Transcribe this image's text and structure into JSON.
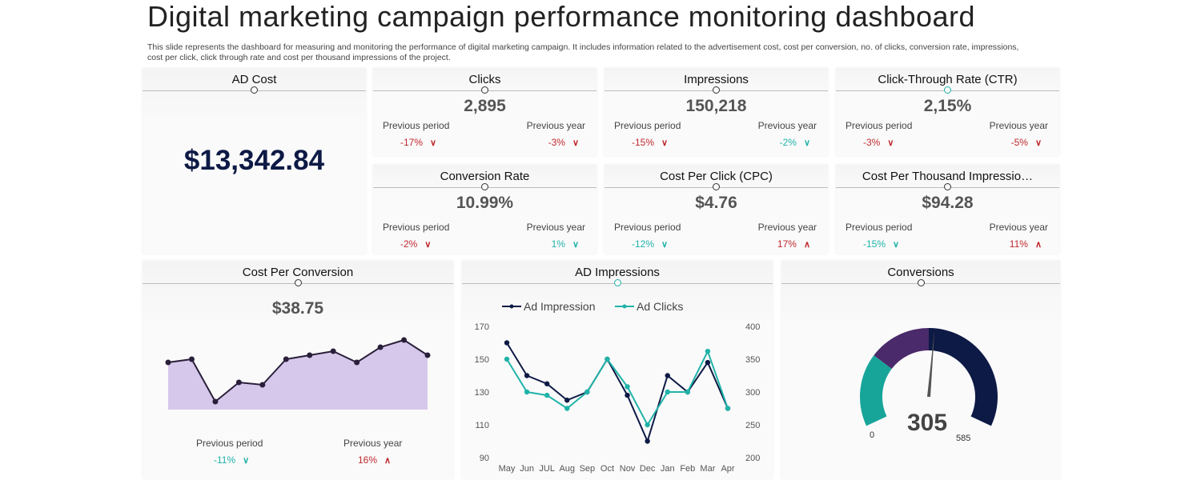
{
  "title": "Digital marketing campaign performance monitoring dashboard",
  "description": "This slide represents the dashboard for measuring and monitoring the performance of digital marketing campaign. It includes information related to the advertisement cost, cost per conversion, no. of clicks, conversion rate, impressions, cost per click, click through rate and cost per thousand impressions of the project.",
  "colors": {
    "down": "#c0282e",
    "up_good": "#1fb3a8",
    "navy": "#0d1a45",
    "purple": "#4a2a6a",
    "teal": "#17a59a",
    "area": "#d6c8ea"
  },
  "ad_cost": {
    "title": "AD Cost",
    "value": "$13,342.84"
  },
  "kpis": [
    {
      "title": "Clicks",
      "value": "2,895",
      "pp_label": "Previous period",
      "pp": "-17%",
      "pp_dir": "down",
      "pp_color": "red",
      "py_label": "Previous year",
      "py": "-3%",
      "py_dir": "down",
      "py_color": "red"
    },
    {
      "title": "Impressions",
      "value": "150,218",
      "pp_label": "Previous period",
      "pp": "-15%",
      "pp_dir": "down",
      "pp_color": "red",
      "py_label": "Previous year",
      "py": "-2%",
      "py_dir": "down",
      "py_color": "teal"
    },
    {
      "title": "Click-Through Rate (CTR)",
      "value": "2,15%",
      "pp_label": "Previous period",
      "pp": "-3%",
      "pp_dir": "down",
      "pp_color": "red",
      "py_label": "Previous year",
      "py": "-5%",
      "py_dir": "down",
      "py_color": "red"
    },
    {
      "title": "Conversion Rate",
      "value": "10.99%",
      "pp_label": "Previous period",
      "pp": "-2%",
      "pp_dir": "down",
      "pp_color": "red",
      "py_label": "Previous year",
      "py": "1%",
      "py_dir": "down",
      "py_color": "teal"
    },
    {
      "title": "Cost Per Click (CPC)",
      "value": "$4.76",
      "pp_label": "Previous period",
      "pp": "-12%",
      "pp_dir": "down",
      "pp_color": "teal",
      "py_label": "Previous year",
      "py": "17%",
      "py_dir": "up",
      "py_color": "red"
    },
    {
      "title": "Cost Per Thousand Impressio…",
      "value": "$94.28",
      "pp_label": "Previous period",
      "pp": "-15%",
      "pp_dir": "down",
      "pp_color": "teal",
      "py_label": "Previous year",
      "py": "11%",
      "py_dir": "up",
      "py_color": "red"
    }
  ],
  "cost_per_conversion": {
    "title": "Cost Per Conversion",
    "value": "$38.75",
    "pp_label": "Previous period",
    "pp": "-11%",
    "pp_dir": "down",
    "pp_color": "teal",
    "py_label": "Previous year",
    "py": "16%",
    "py_dir": "up",
    "py_color": "red"
  },
  "ad_impressions": {
    "title": "AD Impressions"
  },
  "conversions": {
    "title": "Conversions",
    "value": "305",
    "min": "0",
    "max": "585"
  },
  "chart_data": [
    {
      "type": "area",
      "title": "Cost Per Conversion",
      "values": [
        59,
        63,
        10,
        34,
        31,
        63,
        68,
        73,
        59,
        78,
        87,
        68
      ]
    },
    {
      "type": "line",
      "title": "AD Impressions",
      "categories": [
        "May",
        "Jun",
        "JUL",
        "Aug",
        "Sep",
        "Oct",
        "Nov",
        "Dec",
        "Jan",
        "Feb",
        "Mar",
        "Apr"
      ],
      "series": [
        {
          "name": "Ad Impression",
          "axis": "left",
          "values": [
            160,
            140,
            135,
            125,
            130,
            150,
            128,
            100,
            140,
            130,
            148,
            120
          ],
          "color": "#0d1a45"
        },
        {
          "name": "Ad Clicks",
          "axis": "right",
          "values": [
            350,
            300,
            295,
            275,
            300,
            350,
            308,
            250,
            300,
            300,
            362,
            275
          ],
          "color": "#1fb3a8"
        }
      ],
      "ylim_left": [
        90,
        170
      ],
      "yticks_left": [
        "170",
        "150",
        "130",
        "110",
        "90"
      ],
      "ylim_right": [
        200,
        400
      ],
      "yticks_right": [
        "400",
        "350",
        "300",
        "250",
        "200"
      ],
      "legend": "top-left",
      "grid": false
    },
    {
      "type": "gauge",
      "title": "Conversions",
      "value": 305,
      "min": 0,
      "max": 585,
      "segments": [
        {
          "to": 0.27,
          "color": "#17a59a"
        },
        {
          "to": 0.5,
          "color": "#4a2a6a"
        },
        {
          "to": 1,
          "color": "#0d1a45"
        }
      ]
    }
  ]
}
